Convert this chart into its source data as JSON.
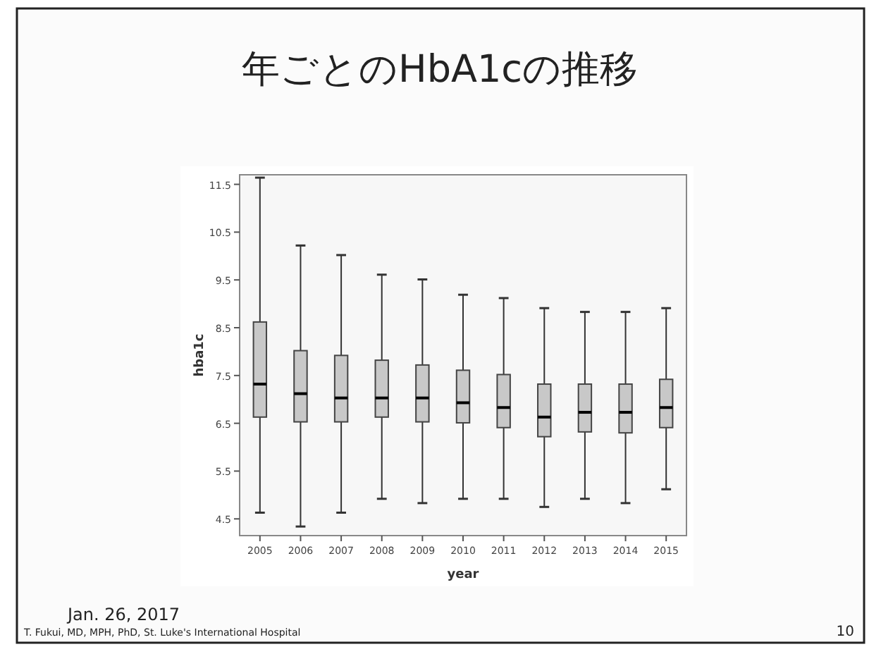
{
  "chart_data": {
    "type": "box",
    "title": "年ごとのHbA1cの推移",
    "xlabel": "year",
    "ylabel": "hba1c",
    "categories": [
      "2005",
      "2006",
      "2007",
      "2008",
      "2009",
      "2010",
      "2011",
      "2012",
      "2013",
      "2014",
      "2015"
    ],
    "boxes": [
      {
        "low": 4.63,
        "q1": 6.63,
        "median": 7.32,
        "q3": 8.62,
        "high": 11.64
      },
      {
        "low": 4.34,
        "q1": 6.53,
        "median": 7.12,
        "q3": 8.02,
        "high": 10.22
      },
      {
        "low": 4.63,
        "q1": 6.53,
        "median": 7.03,
        "q3": 7.92,
        "high": 10.02
      },
      {
        "low": 4.92,
        "q1": 6.63,
        "median": 7.03,
        "q3": 7.82,
        "high": 9.61
      },
      {
        "low": 4.83,
        "q1": 6.53,
        "median": 7.03,
        "q3": 7.72,
        "high": 9.51
      },
      {
        "low": 4.92,
        "q1": 6.51,
        "median": 6.93,
        "q3": 7.61,
        "high": 9.19
      },
      {
        "low": 4.92,
        "q1": 6.41,
        "median": 6.83,
        "q3": 7.52,
        "high": 9.12
      },
      {
        "low": 4.75,
        "q1": 6.22,
        "median": 6.63,
        "q3": 7.32,
        "high": 8.91
      },
      {
        "low": 4.92,
        "q1": 6.32,
        "median": 6.73,
        "q3": 7.32,
        "high": 8.83
      },
      {
        "low": 4.83,
        "q1": 6.3,
        "median": 6.73,
        "q3": 7.32,
        "high": 8.83
      },
      {
        "low": 5.12,
        "q1": 6.41,
        "median": 6.83,
        "q3": 7.42,
        "high": 8.91
      }
    ],
    "color": "#c8c8c8",
    "ylim": [
      4.15,
      11.7
    ],
    "yticks": [
      4.5,
      5.5,
      6.5,
      7.5,
      8.5,
      9.5,
      10.5,
      11.5
    ],
    "annotations": [
      "Jan. 26, 2017",
      "T. Fukui, MD, MPH, PhD, St. Luke's International Hospital",
      "10"
    ]
  }
}
